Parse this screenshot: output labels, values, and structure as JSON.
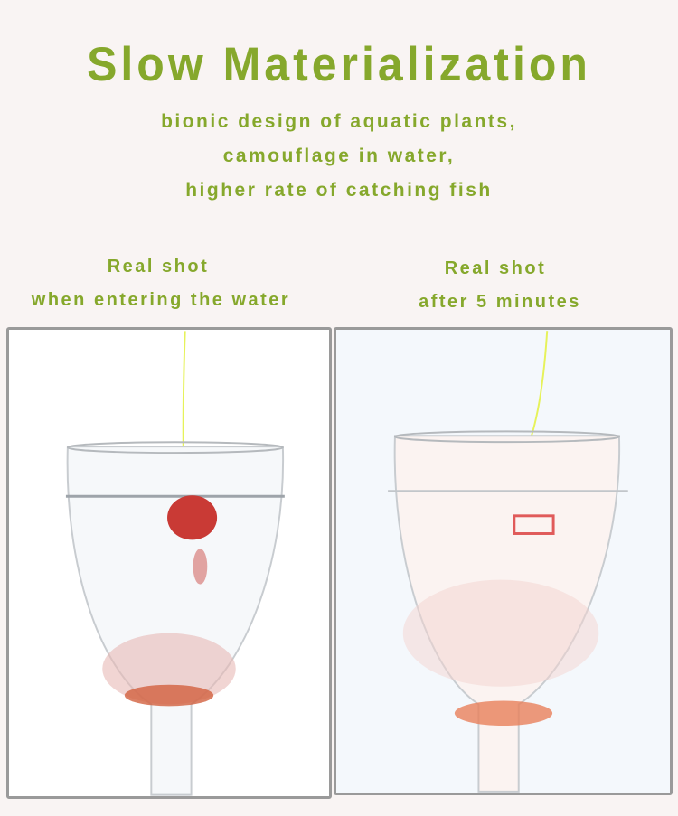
{
  "header": {
    "title": "Slow Materialization",
    "lines": [
      "bionic design of aquatic plants,",
      "camouflage in water,",
      "higher rate of catching fish"
    ]
  },
  "panels": [
    {
      "caption_1": "Real shot",
      "caption_2": "when entering the water",
      "image": "wine glass of water with red bait dissolving"
    },
    {
      "caption_1": "Real shot",
      "caption_2": "after 5 minutes",
      "image": "wine glass of water with dissolved bait skeleton"
    }
  ],
  "colors": {
    "accent": "#86a82c",
    "background": "#f9f4f3",
    "frame": "#9a9a9a",
    "line": "#e6f25a",
    "bait": "#c93a35"
  }
}
